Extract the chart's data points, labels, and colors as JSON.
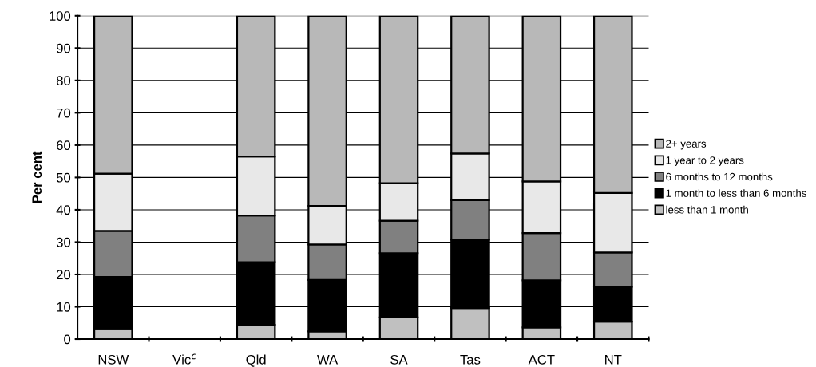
{
  "chart_data": {
    "type": "bar",
    "stacked": true,
    "ylabel": "Per cent",
    "categories": [
      "NSW",
      "Vic$^{c}$",
      "Qld",
      "WA",
      "SA",
      "Tas",
      "ACT",
      "NT"
    ],
    "series": [
      {
        "name": "less than 1 month",
        "color": "#c0c0c0",
        "values": [
          3.3,
          null,
          4.4,
          2.4,
          6.7,
          9.6,
          3.6,
          5.4
        ]
      },
      {
        "name": "1 month to less than 6 months",
        "color": "#000000",
        "values": [
          15.9,
          null,
          19.4,
          15.9,
          19.9,
          21.2,
          14.6,
          10.8
        ]
      },
      {
        "name": "6 months to 12 months",
        "color": "#808080",
        "values": [
          14.3,
          null,
          14.4,
          11.0,
          10.0,
          12.2,
          14.6,
          10.6
        ]
      },
      {
        "name": "1 year to 2 years",
        "color": "#e8e8e8",
        "values": [
          17.7,
          null,
          18.3,
          11.9,
          11.6,
          14.4,
          16.0,
          18.4
        ]
      },
      {
        "name": "2+ years",
        "color": "#b8b8b8",
        "values": [
          48.8,
          null,
          43.5,
          58.8,
          51.8,
          42.6,
          51.2,
          54.8
        ]
      }
    ],
    "ylim": [
      0,
      100
    ],
    "yticks": [
      0,
      10,
      20,
      30,
      40,
      50,
      60,
      70,
      80,
      90,
      100
    ],
    "grid": "y",
    "legend": "right"
  }
}
